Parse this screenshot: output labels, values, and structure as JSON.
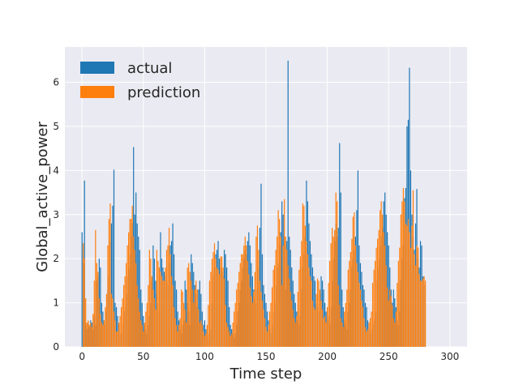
{
  "chart_data": {
    "type": "bar",
    "title": "",
    "xlabel": "Time step",
    "ylabel": "Global_active_power",
    "xlim": [
      -14,
      314
    ],
    "ylim": [
      0,
      6.8
    ],
    "x_ticks": [
      0,
      50,
      100,
      150,
      200,
      250,
      300
    ],
    "y_ticks": [
      0,
      1,
      2,
      3,
      4,
      5,
      6
    ],
    "grid": true,
    "legend_position": "top-left",
    "series": [
      {
        "name": "actual",
        "color": "#1f77b4",
        "x_start": 0,
        "x_step": 1,
        "values": [
          2.6,
          1.9,
          3.77,
          0.5,
          0.4,
          0.55,
          0.45,
          0.6,
          0.55,
          0.4,
          0.7,
          0.5,
          1.5,
          1.6,
          2.0,
          1.8,
          1.0,
          0.8,
          0.6,
          0.5,
          0.8,
          1.3,
          1.6,
          2.4,
          2.8,
          3.2,
          4.02,
          1.0,
          0.9,
          0.7,
          0.5,
          0.3,
          0.3,
          0.5,
          0.8,
          0.9,
          1.2,
          1.6,
          1.8,
          2.1,
          2.5,
          2.8,
          4.53,
          3.0,
          3.5,
          2.8,
          2.5,
          2.2,
          1.3,
          1.0,
          0.7,
          0.5,
          0.4,
          0.3,
          0.5,
          0.7,
          1.0,
          1.5,
          2.3,
          2.0,
          1.5,
          1.2,
          1.0,
          0.8,
          2.6,
          2.0,
          1.8,
          1.7,
          1.6,
          1.5,
          1.4,
          1.9,
          2.3,
          2.4,
          2.8,
          2.1,
          1.5,
          1.3,
          0.8,
          0.6,
          0.4,
          0.3,
          0.5,
          0.6,
          1.5,
          1.3,
          1.0,
          0.8,
          0.5,
          2.1,
          1.9,
          1.7,
          1.4,
          1.2,
          0.9,
          1.3,
          1.5,
          1.2,
          0.8,
          0.5,
          0.6,
          0.4,
          0.3,
          0.2,
          0.3,
          0.4,
          1.0,
          1.6,
          1.8,
          2.1,
          2.2,
          2.4,
          2.0,
          1.8,
          1.7,
          1.6,
          2.2,
          2.1,
          1.8,
          1.5,
          0.9,
          0.5,
          0.4,
          0.3,
          0.2,
          0.3,
          0.5,
          0.8,
          1.0,
          1.3,
          1.5,
          1.8,
          2.0,
          2.2,
          2.1,
          2.4,
          2.6,
          2.3,
          1.9,
          1.6,
          1.3,
          1.1,
          1.0,
          1.3,
          1.8,
          2.7,
          3.7,
          2.1,
          1.4,
          1.2,
          1.0,
          0.8,
          0.6,
          0.4,
          0.3,
          0.5,
          0.8,
          1.0,
          1.4,
          1.8,
          1.9,
          2.3,
          2.6,
          3.3,
          3.0,
          2.5,
          1.3,
          2.4,
          6.49,
          2.5,
          2.2,
          1.8,
          1.5,
          1.2,
          1.0,
          0.8,
          0.6,
          0.5,
          0.7,
          1.3,
          1.8,
          2.1,
          2.5,
          3.77,
          3.3,
          2.8,
          2.4,
          2.1,
          1.8,
          1.6,
          1.5,
          1.0,
          0.9,
          0.8,
          1.2,
          1.6,
          1.5,
          1.3,
          1.0,
          0.8,
          0.6,
          0.7,
          0.5,
          0.9,
          1.5,
          2.0,
          2.4,
          2.8,
          2.5,
          2.7,
          4.62,
          3.5,
          1.3,
          0.9,
          0.6,
          0.5,
          0.4,
          0.8,
          1.0,
          1.3,
          1.8,
          2.0,
          2.2,
          2.5,
          3.1,
          4.0,
          2.3,
          1.9,
          1.7,
          1.4,
          1.3,
          1.0,
          0.9,
          0.6,
          0.4,
          0.3,
          0.4,
          0.5,
          0.6,
          0.8,
          1.5,
          1.8,
          2.0,
          2.3,
          2.5,
          2.7,
          3.3,
          3.5,
          3.0,
          2.6,
          2.3,
          1.8,
          1.3,
          1.0,
          1.3,
          1.1,
          0.9,
          0.6,
          0.5,
          0.8,
          1.5,
          2.0,
          2.3,
          3.37,
          3.6,
          5.0,
          5.15,
          6.33,
          4.0,
          3.0,
          2.5,
          2.2,
          2.8,
          3.58,
          2.0,
          1.8,
          2.4,
          2.3,
          1.6,
          1.4
        ]
      },
      {
        "name": "prediction",
        "color": "#ff7f0e",
        "x_start": 1,
        "x_step": 1,
        "values": [
          2.35,
          2.0,
          1.1,
          0.55,
          0.6,
          0.5,
          0.55,
          0.45,
          0.75,
          1.5,
          2.65,
          1.9,
          1.7,
          1.1,
          0.75,
          0.55,
          0.5,
          0.6,
          0.9,
          1.2,
          2.3,
          2.9,
          3.25,
          1.2,
          1.1,
          0.8,
          0.6,
          0.35,
          0.35,
          0.55,
          0.7,
          0.9,
          1.1,
          1.4,
          1.6,
          1.9,
          2.3,
          2.6,
          2.9,
          2.9,
          3.2,
          2.5,
          2.2,
          1.9,
          1.4,
          1.1,
          0.8,
          0.6,
          0.5,
          0.35,
          0.55,
          0.8,
          1.0,
          1.4,
          2.2,
          2.0,
          1.6,
          1.3,
          1.1,
          0.85,
          2.2,
          1.95,
          1.8,
          1.7,
          1.6,
          1.5,
          1.5,
          1.8,
          2.2,
          2.3,
          2.7,
          2.1,
          1.6,
          1.4,
          0.9,
          0.65,
          0.5,
          0.35,
          0.5,
          0.65,
          1.3,
          1.25,
          1.0,
          0.85,
          0.55,
          1.8,
          1.9,
          1.7,
          1.5,
          1.3,
          1.0,
          1.3,
          1.5,
          1.3,
          0.85,
          0.55,
          0.6,
          0.5,
          0.35,
          0.25,
          0.3,
          0.5,
          0.95,
          1.5,
          1.7,
          2.0,
          2.15,
          2.35,
          2.0,
          1.8,
          1.75,
          1.65,
          2.05,
          2.05,
          1.8,
          1.55,
          0.95,
          0.55,
          0.45,
          0.35,
          0.25,
          0.3,
          0.55,
          0.8,
          1.0,
          1.3,
          1.45,
          1.7,
          1.9,
          2.1,
          2.1,
          2.3,
          2.5,
          2.3,
          1.95,
          1.65,
          1.35,
          1.15,
          1.0,
          1.25,
          1.7,
          2.5,
          2.75,
          2.2,
          1.5,
          1.25,
          1.05,
          0.85,
          0.65,
          0.45,
          0.35,
          0.5,
          0.8,
          1.0,
          1.35,
          1.75,
          1.85,
          2.2,
          2.5,
          3.1,
          2.9,
          2.5,
          1.4,
          2.3,
          3.35,
          2.5,
          2.2,
          1.85,
          1.55,
          1.25,
          1.05,
          0.85,
          0.65,
          0.55,
          0.7,
          1.25,
          1.75,
          2.05,
          2.4,
          3.25,
          3.2,
          2.75,
          2.4,
          2.1,
          1.8,
          1.6,
          1.5,
          1.05,
          0.9,
          0.85,
          1.2,
          1.55,
          1.5,
          1.3,
          1.05,
          0.85,
          0.65,
          0.7,
          0.55,
          0.9,
          1.45,
          1.95,
          2.35,
          2.7,
          2.5,
          2.65,
          3.5,
          3.3,
          1.4,
          0.95,
          0.65,
          0.55,
          0.45,
          0.8,
          1.0,
          1.3,
          1.75,
          1.95,
          2.15,
          2.45,
          2.95,
          3.05,
          2.3,
          1.9,
          1.7,
          1.45,
          1.3,
          1.05,
          0.9,
          0.65,
          0.45,
          0.35,
          0.4,
          0.55,
          0.65,
          0.8,
          1.45,
          1.75,
          1.95,
          2.25,
          2.45,
          2.65,
          3.1,
          3.3,
          3.0,
          2.6,
          2.3,
          1.85,
          1.35,
          1.05,
          1.3,
          1.15,
          0.95,
          0.65,
          0.55,
          0.8,
          1.45,
          1.95,
          2.25,
          3.0,
          3.3,
          3.6,
          3.3,
          2.8,
          2.75,
          2.9,
          2.6,
          2.25,
          2.75,
          3.55,
          2.1,
          1.85,
          2.3,
          2.25,
          1.65,
          1.5,
          1.5,
          1.55,
          1.6,
          1.5
        ]
      }
    ]
  }
}
